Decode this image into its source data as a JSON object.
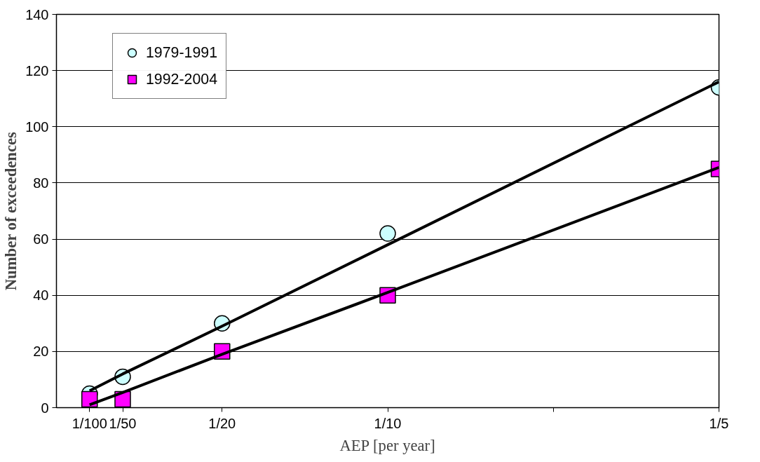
{
  "chart_data": {
    "type": "scatter",
    "xlabel": "AEP [per year]",
    "ylabel": "Number of exceedences",
    "x": [
      0.01,
      0.02,
      0.05,
      0.1,
      0.2
    ],
    "xlim": [
      0,
      0.2
    ],
    "xticks": [
      {
        "value": 0.01,
        "label": "1/100"
      },
      {
        "value": 0.02,
        "label": "1/50"
      },
      {
        "value": 0.05,
        "label": "1/20"
      },
      {
        "value": 0.1,
        "label": "1/10"
      },
      {
        "value": 0.15,
        "label": null
      },
      {
        "value": 0.2,
        "label": "1/5"
      }
    ],
    "ylim": [
      0,
      140
    ],
    "yticks": [
      0,
      20,
      40,
      60,
      80,
      100,
      120,
      140
    ],
    "grid": "y",
    "legend": "top left",
    "series": [
      {
        "name": "1979-1991",
        "color": "#ccffff",
        "marker": "circle",
        "values": [
          5,
          11,
          30,
          62,
          114
        ]
      },
      {
        "name": "1992-2004",
        "color": "#ff00ff",
        "marker": "square",
        "values": [
          3,
          3,
          20,
          40,
          85
        ]
      },
      {
        "type": "line",
        "color": "#000000",
        "marker": "none",
        "values": [
          6,
          12,
          29,
          58,
          116
        ]
      },
      {
        "type": "line",
        "color": "#000000",
        "marker": "none",
        "values": [
          1,
          5.4,
          19,
          41,
          85.5
        ]
      }
    ]
  }
}
